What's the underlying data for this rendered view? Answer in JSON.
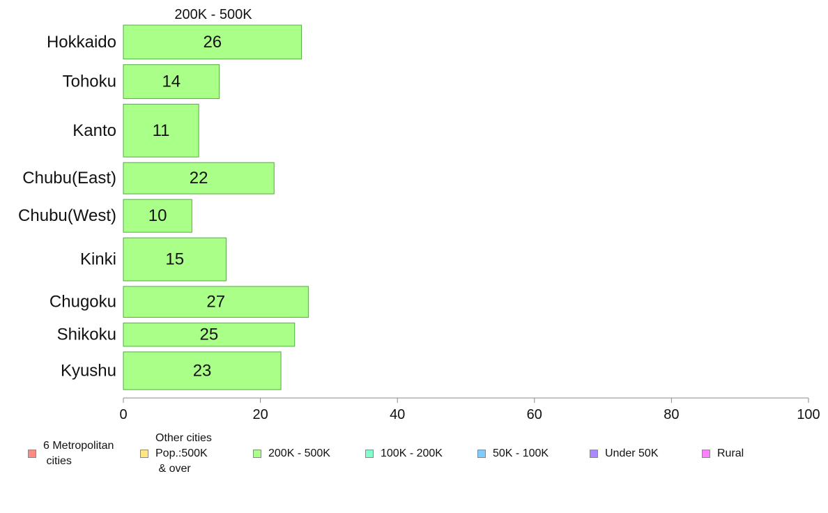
{
  "chart_data": {
    "type": "bar",
    "orientation": "horizontal",
    "title": "200K - 500K",
    "categories": [
      "Hokkaido",
      "Tohoku",
      "Kanto",
      "Chubu(East)",
      "Chubu(West)",
      "Kinki",
      "Chugoku",
      "Shikoku",
      "Kyushu"
    ],
    "values": [
      26,
      14,
      11,
      22,
      10,
      15,
      27,
      25,
      23
    ],
    "bar_relative_thickness": [
      0.9,
      0.9,
      1.4,
      0.83,
      0.87,
      1.14,
      0.82,
      0.62,
      1.0
    ],
    "xlim": [
      0,
      100
    ],
    "xticks": [
      0,
      20,
      40,
      60,
      80,
      100
    ],
    "xlabel": "",
    "ylabel": "",
    "grid": false,
    "bar_color": "#aaff88",
    "bar_edge_color": "#55aa44",
    "legend_position": "bottom",
    "legend": [
      {
        "label": "6 Metropolitan\n cities",
        "color": "#ff8a80"
      },
      {
        "label": "Other cities\nPop.:500K\n & over",
        "color": "#ffe680"
      },
      {
        "label": "200K - 500K",
        "color": "#aaff88"
      },
      {
        "label": "100K - 200K",
        "color": "#80ffcc"
      },
      {
        "label": "50K - 100K",
        "color": "#80ccff"
      },
      {
        "label": "Under 50K",
        "color": "#aa88ff"
      },
      {
        "label": "Rural",
        "color": "#ff80ff"
      }
    ]
  }
}
